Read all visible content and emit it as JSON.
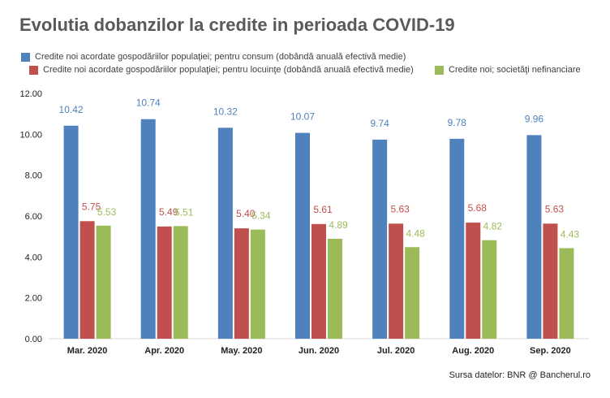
{
  "chart_data": {
    "type": "bar",
    "title": "Evolutia dobanzilor la credite in perioada COVID-19",
    "categories": [
      "Mar. 2020",
      "Apr. 2020",
      "May. 2020",
      "Jun. 2020",
      "Jul. 2020",
      "Aug. 2020",
      "Sep. 2020"
    ],
    "series": [
      {
        "name": "Credite noi acordate gospodăriilor populaţiei; pentru consum (dobândă anuală efectivă medie)",
        "color": "#4f81bd",
        "label_color": "#4f81bd",
        "values": [
          10.42,
          10.74,
          10.32,
          10.07,
          9.74,
          9.78,
          9.96
        ]
      },
      {
        "name": "Credite noi acordate gospodăriilor populaţiei; pentru locuinţe (dobândă anuală efectivă medie)",
        "color": "#c0504d",
        "label_color": "#c0504d",
        "values": [
          5.75,
          5.49,
          5.4,
          5.61,
          5.63,
          5.68,
          5.63
        ]
      },
      {
        "name": "Credite noi; societăţi nefinanciare",
        "color": "#9bbb59",
        "label_color": "#9bbb59",
        "values": [
          5.53,
          5.51,
          5.34,
          4.89,
          4.48,
          4.82,
          4.43
        ]
      }
    ],
    "ylim": [
      0,
      12
    ],
    "yticks": [
      "0.00",
      "2.00",
      "4.00",
      "6.00",
      "8.00",
      "10.00",
      "12.00"
    ],
    "grid": false,
    "legend_position": "top"
  },
  "source_text": "Sursa datelor: BNR @ Bancherul.ro"
}
